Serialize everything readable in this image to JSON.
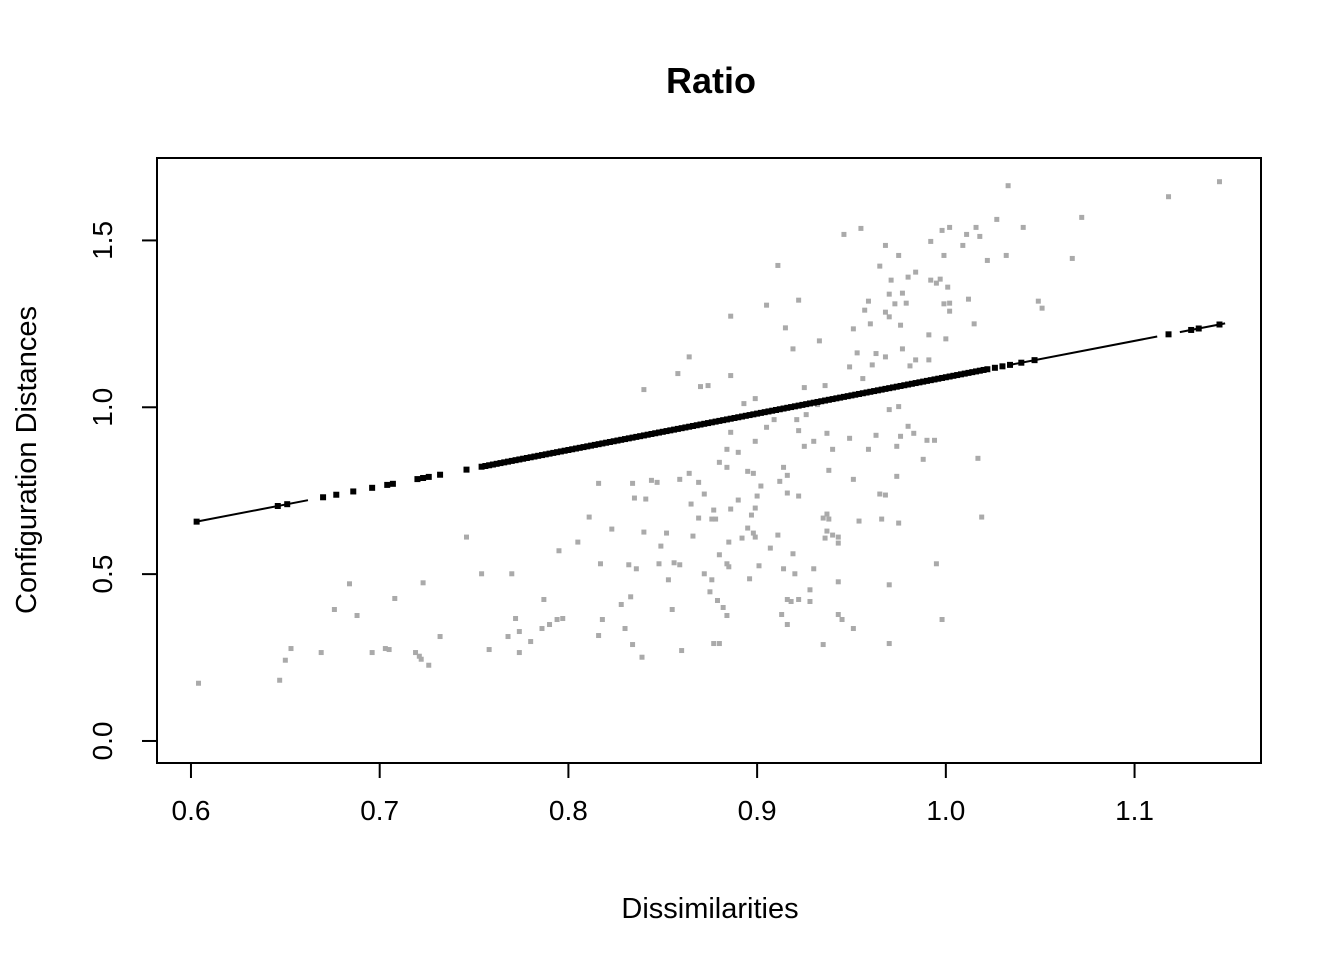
{
  "figure": {
    "title": "Ratio",
    "x_axis_label": "Dissimilarities",
    "y_axis_label": "Configuration Distances",
    "background_color": "#ffffff",
    "point_color": "#aaaaaa",
    "fit_color": "#000000"
  },
  "chart_data": {
    "type": "scatter",
    "title": "Ratio",
    "xlabel": "Dissimilarities",
    "ylabel": "Configuration Distances",
    "x_ticks": [
      0.6,
      0.7,
      0.8,
      0.9,
      1.0,
      1.1
    ],
    "y_ticks": [
      0.0,
      0.5,
      1.0,
      1.5
    ],
    "xlim": [
      0.582,
      1.167
    ],
    "ylim": [
      -0.066,
      1.747
    ],
    "grid": false,
    "series": [
      {
        "name": "dissimilarity-configuration-distance-points",
        "type": "scatter",
        "marker": "square",
        "color": "#aaaaaa",
        "points": [
          [
            0.955,
            1.536
          ],
          [
            0.946,
            1.518
          ],
          [
            0.968,
            1.485
          ],
          [
            0.975,
            1.455
          ],
          [
            0.911,
            1.425
          ],
          [
            0.965,
            1.423
          ],
          [
            0.98,
            1.39
          ],
          [
            0.971,
            1.381
          ],
          [
            0.97,
            1.339
          ],
          [
            0.977,
            1.342
          ],
          [
            0.922,
            1.321
          ],
          [
            0.973,
            1.31
          ],
          [
            0.979,
            1.312
          ],
          [
            0.886,
            1.273
          ],
          [
            0.905,
            1.306
          ],
          [
            0.959,
            1.318
          ],
          [
            0.957,
            1.291
          ],
          [
            0.968,
            1.285
          ],
          [
            0.97,
            1.271
          ],
          [
            0.976,
            1.246
          ],
          [
            0.951,
            1.235
          ],
          [
            0.96,
            1.25
          ],
          [
            0.915,
            1.238
          ],
          [
            0.933,
            1.199
          ],
          [
            0.953,
            1.163
          ],
          [
            0.963,
            1.161
          ],
          [
            0.968,
            1.151
          ],
          [
            0.919,
            1.175
          ],
          [
            0.864,
            1.151
          ],
          [
            0.858,
            1.101
          ],
          [
            0.949,
            1.121
          ],
          [
            0.961,
            1.127
          ],
          [
            0.956,
            1.086
          ],
          [
            0.977,
            1.175
          ],
          [
            0.981,
            1.124
          ],
          [
            0.84,
            1.053
          ],
          [
            0.87,
            1.062
          ],
          [
            0.874,
            1.065
          ],
          [
            0.886,
            1.095
          ],
          [
            0.925,
            1.059
          ],
          [
            0.936,
            1.065
          ],
          [
            0.893,
            1.011
          ],
          [
            0.899,
            1.026
          ],
          [
            0.909,
            0.963
          ],
          [
            0.921,
            0.963
          ],
          [
            0.926,
            0.978
          ],
          [
            0.932,
            1.008
          ],
          [
            0.886,
            0.925
          ],
          [
            0.89,
            0.865
          ],
          [
            0.899,
            0.898
          ],
          [
            0.905,
            0.94
          ],
          [
            0.88,
            0.835
          ],
          [
            0.884,
            0.874
          ],
          [
            0.922,
            0.93
          ],
          [
            0.925,
            0.883
          ],
          [
            0.93,
            0.898
          ],
          [
            0.937,
            0.922
          ],
          [
            0.94,
            0.874
          ],
          [
            0.949,
            0.907
          ],
          [
            0.959,
            0.874
          ],
          [
            0.963,
            0.916
          ],
          [
            0.97,
            0.993
          ],
          [
            0.975,
            1.002
          ],
          [
            0.98,
            0.943
          ],
          [
            0.976,
            0.913
          ],
          [
            0.983,
            0.922
          ],
          [
            0.974,
            0.883
          ],
          [
            1.033,
            1.664
          ],
          [
            1.145,
            1.676
          ],
          [
            1.118,
            1.631
          ],
          [
            1.072,
            1.569
          ],
          [
            1.027,
            1.563
          ],
          [
            0.998,
            1.53
          ],
          [
            1.002,
            1.539
          ],
          [
            1.016,
            1.539
          ],
          [
            1.011,
            1.518
          ],
          [
            1.018,
            1.512
          ],
          [
            0.992,
            1.497
          ],
          [
            1.009,
            1.485
          ],
          [
            1.041,
            1.539
          ],
          [
            0.999,
            1.455
          ],
          [
            1.032,
            1.455
          ],
          [
            1.022,
            1.44
          ],
          [
            1.067,
            1.446
          ],
          [
            0.984,
            1.405
          ],
          [
            0.992,
            1.381
          ],
          [
            0.995,
            1.372
          ],
          [
            0.997,
            1.384
          ],
          [
            1.001,
            1.36
          ],
          [
            0.999,
            1.31
          ],
          [
            1.002,
            1.312
          ],
          [
            1.012,
            1.324
          ],
          [
            1.002,
            1.288
          ],
          [
            1.049,
            1.318
          ],
          [
            1.051,
            1.297
          ],
          [
            1.015,
            1.25
          ],
          [
            0.991,
            1.217
          ],
          [
            1.0,
            1.205
          ],
          [
            0.984,
            1.142
          ],
          [
            0.991,
            1.142
          ],
          [
            0.99,
            0.901
          ],
          [
            0.994,
            0.901
          ],
          [
            0.988,
            0.844
          ],
          [
            1.017,
            0.847
          ],
          [
            0.746,
            0.611
          ],
          [
            0.754,
            0.501
          ],
          [
            0.77,
            0.501
          ],
          [
            0.684,
            0.471
          ],
          [
            0.723,
            0.474
          ],
          [
            0.708,
            0.427
          ],
          [
            0.676,
            0.394
          ],
          [
            0.688,
            0.376
          ],
          [
            0.732,
            0.313
          ],
          [
            0.768,
            0.313
          ],
          [
            0.774,
            0.328
          ],
          [
            0.772,
            0.367
          ],
          [
            0.78,
            0.298
          ],
          [
            0.653,
            0.277
          ],
          [
            0.65,
            0.242
          ],
          [
            0.669,
            0.265
          ],
          [
            0.696,
            0.265
          ],
          [
            0.703,
            0.277
          ],
          [
            0.705,
            0.274
          ],
          [
            0.719,
            0.265
          ],
          [
            0.721,
            0.254
          ],
          [
            0.722,
            0.245
          ],
          [
            0.726,
            0.227
          ],
          [
            0.758,
            0.274
          ],
          [
            0.774,
            0.265
          ],
          [
            0.647,
            0.182
          ],
          [
            0.604,
            0.173
          ],
          [
            0.816,
            0.772
          ],
          [
            0.834,
            0.772
          ],
          [
            0.844,
            0.781
          ],
          [
            0.847,
            0.775
          ],
          [
            0.859,
            0.784
          ],
          [
            0.864,
            0.802
          ],
          [
            0.869,
            0.775
          ],
          [
            0.884,
            0.82
          ],
          [
            0.895,
            0.808
          ],
          [
            0.898,
            0.802
          ],
          [
            0.902,
            0.764
          ],
          [
            0.914,
            0.82
          ],
          [
            0.916,
            0.796
          ],
          [
            0.912,
            0.778
          ],
          [
            0.916,
            0.743
          ],
          [
            0.922,
            0.734
          ],
          [
            0.938,
            0.811
          ],
          [
            0.951,
            0.784
          ],
          [
            0.974,
            0.793
          ],
          [
            0.965,
            0.74
          ],
          [
            0.968,
            0.737
          ],
          [
            0.835,
            0.728
          ],
          [
            0.841,
            0.725
          ],
          [
            0.872,
            0.74
          ],
          [
            0.89,
            0.722
          ],
          [
            0.9,
            0.734
          ],
          [
            0.865,
            0.71
          ],
          [
            0.886,
            0.695
          ],
          [
            0.899,
            0.698
          ],
          [
            0.897,
            0.677
          ],
          [
            0.877,
            0.692
          ],
          [
            0.878,
            0.665
          ],
          [
            0.869,
            0.668
          ],
          [
            0.876,
            0.665
          ],
          [
            0.811,
            0.671
          ],
          [
            0.937,
            0.68
          ],
          [
            0.935,
            0.668
          ],
          [
            0.938,
            0.665
          ],
          [
            0.954,
            0.659
          ],
          [
            0.966,
            0.665
          ],
          [
            0.975,
            0.653
          ],
          [
            0.823,
            0.635
          ],
          [
            0.84,
            0.626
          ],
          [
            0.852,
            0.623
          ],
          [
            0.866,
            0.614
          ],
          [
            0.895,
            0.638
          ],
          [
            0.898,
            0.623
          ],
          [
            0.892,
            0.608
          ],
          [
            0.899,
            0.611
          ],
          [
            0.911,
            0.617
          ],
          [
            0.937,
            0.629
          ],
          [
            0.94,
            0.617
          ],
          [
            0.943,
            0.611
          ],
          [
            0.943,
            0.593
          ],
          [
            0.936,
            0.608
          ],
          [
            0.805,
            0.596
          ],
          [
            0.795,
            0.57
          ],
          [
            0.849,
            0.584
          ],
          [
            0.885,
            0.596
          ],
          [
            0.907,
            0.578
          ],
          [
            0.919,
            0.561
          ],
          [
            0.88,
            0.558
          ],
          [
            0.817,
            0.531
          ],
          [
            0.832,
            0.528
          ],
          [
            0.836,
            0.516
          ],
          [
            0.848,
            0.531
          ],
          [
            0.856,
            0.534
          ],
          [
            0.859,
            0.528
          ],
          [
            0.884,
            0.531
          ],
          [
            0.885,
            0.522
          ],
          [
            0.901,
            0.525
          ],
          [
            0.914,
            0.516
          ],
          [
            0.92,
            0.501
          ],
          [
            0.93,
            0.516
          ],
          [
            0.872,
            0.501
          ],
          [
            0.876,
            0.483
          ],
          [
            0.896,
            0.486
          ],
          [
            0.853,
            0.483
          ],
          [
            0.943,
            0.477
          ],
          [
            0.928,
            0.453
          ],
          [
            0.875,
            0.447
          ],
          [
            0.97,
            0.468
          ],
          [
            0.833,
            0.432
          ],
          [
            0.879,
            0.421
          ],
          [
            0.882,
            0.4
          ],
          [
            0.916,
            0.424
          ],
          [
            0.918,
            0.418
          ],
          [
            0.922,
            0.424
          ],
          [
            0.928,
            0.418
          ],
          [
            0.787,
            0.424
          ],
          [
            0.828,
            0.409
          ],
          [
            0.855,
            0.394
          ],
          [
            0.884,
            0.376
          ],
          [
            0.913,
            0.379
          ],
          [
            0.943,
            0.379
          ],
          [
            0.945,
            0.364
          ],
          [
            0.794,
            0.364
          ],
          [
            0.797,
            0.367
          ],
          [
            0.786,
            0.337
          ],
          [
            0.79,
            0.349
          ],
          [
            0.818,
            0.364
          ],
          [
            0.83,
            0.337
          ],
          [
            0.916,
            0.349
          ],
          [
            0.951,
            0.337
          ],
          [
            0.816,
            0.316
          ],
          [
            0.834,
            0.289
          ],
          [
            0.86,
            0.271
          ],
          [
            0.877,
            0.292
          ],
          [
            0.88,
            0.292
          ],
          [
            0.935,
            0.289
          ],
          [
            0.97,
            0.292
          ],
          [
            0.839,
            0.251
          ],
          [
            1.019,
            0.671
          ],
          [
            0.995,
            0.531
          ],
          [
            0.998,
            0.364
          ]
        ]
      },
      {
        "name": "ratio-fit-line",
        "type": "line-with-points",
        "marker": "square",
        "color": "#000000",
        "slope": 1.09,
        "intercept": 0,
        "x_range": [
          0.603,
          1.145
        ],
        "y_range": [
          0.657,
          1.248
        ],
        "line_segments": [
          [
            0.603,
            0.662
          ],
          [
            1.035,
            1.112
          ],
          [
            1.124,
            1.148
          ]
        ],
        "dot_xs": [
          0.603,
          0.646,
          0.651,
          0.67,
          0.677,
          0.686,
          0.696,
          0.704,
          0.707,
          0.72,
          0.723,
          0.726,
          0.732,
          0.746,
          1.026,
          1.03,
          1.034,
          1.04,
          1.047,
          1.118,
          1.13,
          1.134,
          1.145
        ],
        "dense_dots": {
          "from": 0.754,
          "to": 1.022,
          "step": 0.002
        }
      }
    ]
  }
}
